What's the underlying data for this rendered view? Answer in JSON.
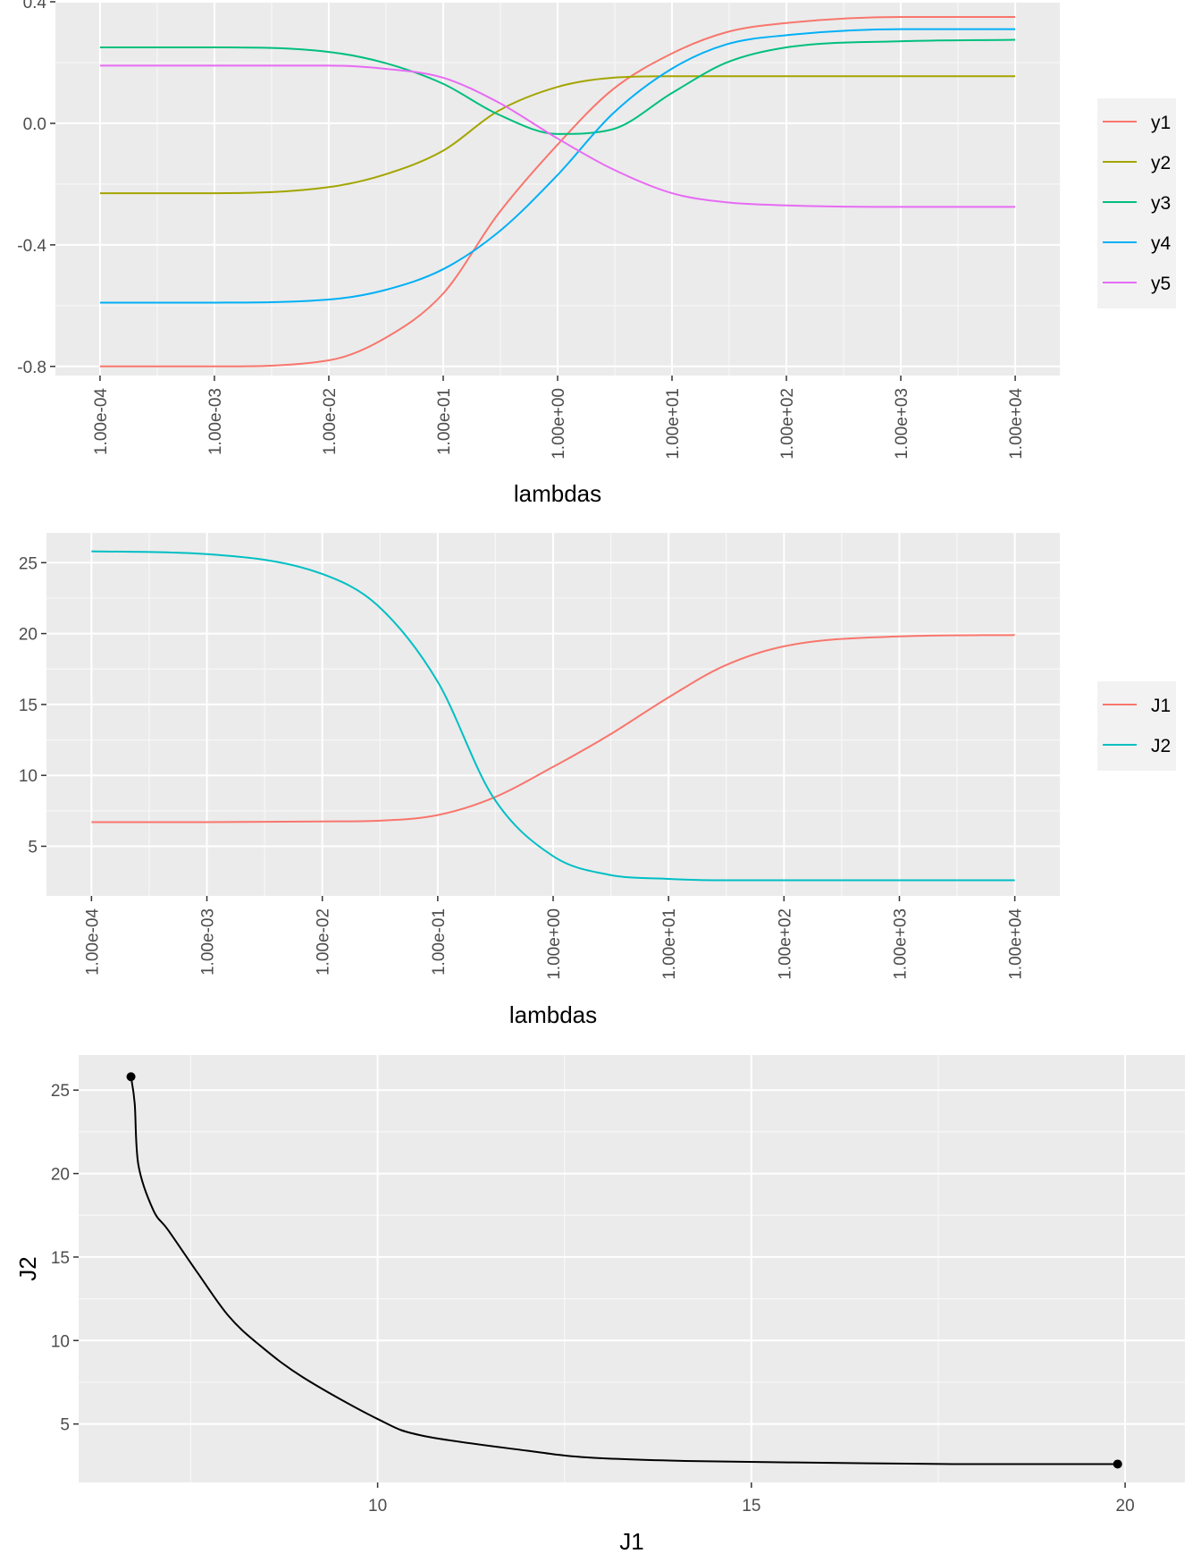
{
  "chart_data": [
    {
      "type": "line",
      "xlabel": "lambdas",
      "ylabel": "",
      "x_scale": "log10",
      "xlim": [
        0.0001,
        10000
      ],
      "ylim": [
        -0.83,
        0.4
      ],
      "x_tick_labels": [
        "1.00e-04",
        "1.00e-03",
        "1.00e-02",
        "1.00e-01",
        "1.00e+00",
        "1.00e+01",
        "1.00e+02",
        "1.00e+03",
        "1.00e+04"
      ],
      "x_ticks": [
        0.0001,
        0.001,
        0.01,
        0.1,
        1,
        10,
        100,
        1000,
        10000
      ],
      "y_ticks": [
        -0.8,
        -0.4,
        0.0,
        0.4
      ],
      "y_tick_labels": [
        "-0.8",
        "-0.4",
        "0.0",
        "0.4"
      ],
      "grid": true,
      "legend_position": "right",
      "x": [
        0.0001,
        0.001,
        0.01,
        0.03,
        0.1,
        0.3,
        1,
        3,
        10,
        30,
        100,
        1000,
        10000
      ],
      "series": [
        {
          "name": "y1",
          "color": "#F8766D",
          "values": [
            -0.8,
            -0.8,
            -0.78,
            -0.71,
            -0.56,
            -0.3,
            -0.07,
            0.11,
            0.23,
            0.3,
            0.33,
            0.35,
            0.35
          ]
        },
        {
          "name": "y2",
          "color": "#A3A500",
          "values": [
            -0.23,
            -0.23,
            -0.21,
            -0.17,
            -0.09,
            0.04,
            0.12,
            0.15,
            0.155,
            0.155,
            0.155,
            0.155,
            0.155
          ]
        },
        {
          "name": "y3",
          "color": "#00BF7D",
          "values": [
            0.25,
            0.25,
            0.235,
            0.2,
            0.13,
            0.03,
            -0.035,
            -0.02,
            0.1,
            0.2,
            0.25,
            0.27,
            0.275
          ]
        },
        {
          "name": "y4",
          "color": "#00B0F6",
          "values": [
            -0.59,
            -0.59,
            -0.58,
            -0.55,
            -0.48,
            -0.36,
            -0.17,
            0.03,
            0.18,
            0.26,
            0.29,
            0.31,
            0.31
          ]
        },
        {
          "name": "y5",
          "color": "#E76BF3",
          "values": [
            0.19,
            0.19,
            0.19,
            0.18,
            0.15,
            0.07,
            -0.05,
            -0.15,
            -0.23,
            -0.26,
            -0.27,
            -0.275,
            -0.275
          ]
        }
      ]
    },
    {
      "type": "line",
      "xlabel": "lambdas",
      "ylabel": "",
      "x_scale": "log10",
      "xlim": [
        0.0001,
        10000
      ],
      "ylim": [
        1.5,
        27.1
      ],
      "x_tick_labels": [
        "1.00e-04",
        "1.00e-03",
        "1.00e-02",
        "1.00e-01",
        "1.00e+00",
        "1.00e+01",
        "1.00e+02",
        "1.00e+03",
        "1.00e+04"
      ],
      "x_ticks": [
        0.0001,
        0.001,
        0.01,
        0.1,
        1,
        10,
        100,
        1000,
        10000
      ],
      "y_ticks": [
        5,
        10,
        15,
        20,
        25
      ],
      "y_tick_labels": [
        "5",
        "10",
        "15",
        "20",
        "25"
      ],
      "grid": true,
      "legend_position": "right",
      "x": [
        0.0001,
        0.001,
        0.01,
        0.03,
        0.1,
        0.3,
        1,
        3,
        10,
        30,
        100,
        1000,
        10000
      ],
      "series": [
        {
          "name": "J1",
          "color": "#F8766D",
          "values": [
            6.7,
            6.7,
            6.75,
            6.8,
            7.2,
            8.4,
            10.6,
            12.8,
            15.5,
            17.7,
            19.1,
            19.8,
            19.9
          ]
        },
        {
          "name": "J2",
          "color": "#00BFC4",
          "values": [
            25.8,
            25.6,
            24.2,
            22.0,
            16.6,
            8.5,
            4.3,
            3.0,
            2.7,
            2.6,
            2.6,
            2.6,
            2.6
          ]
        }
      ]
    },
    {
      "type": "line",
      "xlabel": "J1",
      "ylabel": "J2",
      "xlim": [
        6.0,
        20.8
      ],
      "ylim": [
        1.5,
        27.1
      ],
      "x_ticks": [
        10,
        15,
        20
      ],
      "x_tick_labels": [
        "10",
        "15",
        "20"
      ],
      "y_ticks": [
        5,
        10,
        15,
        20,
        25
      ],
      "y_tick_labels": [
        "5",
        "10",
        "15",
        "20",
        "25"
      ],
      "grid": true,
      "color": "#000000",
      "x": [
        6.7,
        6.75,
        6.8,
        7.0,
        7.2,
        7.6,
        8.0,
        8.4,
        9.0,
        10.0,
        10.6,
        12.0,
        12.8,
        14.0,
        15.5,
        17.7,
        19.1,
        19.9
      ],
      "y": [
        25.8,
        24.2,
        20.5,
        17.8,
        16.6,
        14.0,
        11.5,
        9.8,
        7.8,
        5.3,
        4.3,
        3.4,
        3.0,
        2.8,
        2.7,
        2.6,
        2.6,
        2.6
      ],
      "points": [
        {
          "x": 6.7,
          "y": 25.8
        },
        {
          "x": 19.9,
          "y": 2.6
        }
      ]
    }
  ]
}
